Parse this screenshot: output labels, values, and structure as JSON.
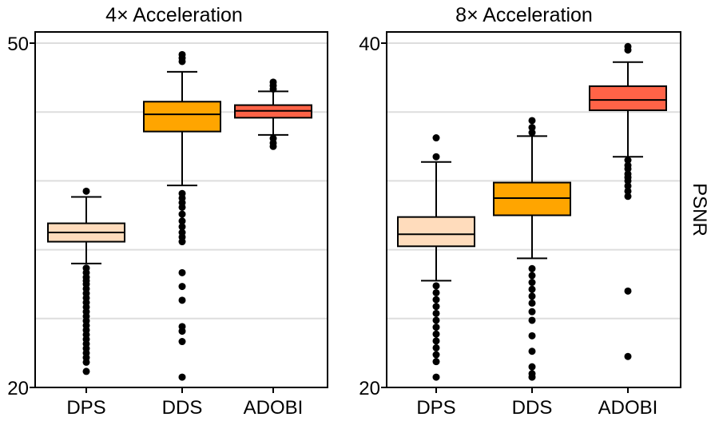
{
  "chart_data": [
    {
      "type": "box",
      "title": "4× Acceleration",
      "ylabel": "",
      "ylim": [
        20,
        50
      ],
      "yticks": [
        20,
        50
      ],
      "grid": true,
      "categories": [
        "DPS",
        "DDS",
        "ADOBI"
      ],
      "colors": [
        "#ffdcbc",
        "#ffa500",
        "#ff6347"
      ],
      "boxes": [
        {
          "label": "DPS",
          "q1": 32.7,
          "median": 33.5,
          "q3": 34.3,
          "whisker_low": 30.8,
          "whisker_high": 36.6,
          "outliers": [
            37.1,
            30.4,
            30.0,
            29.6,
            29.3,
            29.0,
            28.6,
            28.2,
            27.8,
            27.4,
            27.0,
            26.6,
            26.2,
            25.8,
            25.4,
            25.0,
            24.6,
            24.2,
            23.8,
            23.4,
            23.0,
            22.6,
            22.2,
            21.4
          ]
        },
        {
          "label": "DDS",
          "q1": 42.3,
          "median": 43.8,
          "q3": 44.9,
          "whisker_low": 37.6,
          "whisker_high": 47.5,
          "outliers": [
            49.0,
            48.7,
            48.4,
            36.9,
            36.5,
            36.1,
            35.7,
            35.1,
            34.5,
            34.0,
            33.5,
            33.1,
            32.7,
            30.0,
            28.8,
            27.6,
            25.3,
            24.9,
            24.0,
            20.9
          ]
        },
        {
          "label": "ADOBI",
          "q1": 43.5,
          "median": 44.1,
          "q3": 44.6,
          "whisker_low": 42.0,
          "whisker_high": 45.8,
          "outliers": [
            46.6,
            46.3,
            46.0,
            41.7,
            41.3,
            41.0
          ]
        }
      ]
    },
    {
      "type": "box",
      "title": "8× Acceleration",
      "ylabel": "PSNR",
      "ylim": [
        20,
        40
      ],
      "yticks": [
        20,
        40
      ],
      "grid": true,
      "categories": [
        "DPS",
        "DDS",
        "ADOBI"
      ],
      "colors": [
        "#ffdcbc",
        "#ffa500",
        "#ff6347"
      ],
      "boxes": [
        {
          "label": "DPS",
          "q1": 28.2,
          "median": 28.9,
          "q3": 29.9,
          "whisker_low": 26.2,
          "whisker_high": 33.1,
          "outliers": [
            34.5,
            33.4,
            25.9,
            25.5,
            25.1,
            24.7,
            24.3,
            23.9,
            23.5,
            23.1,
            22.7,
            22.3,
            21.9,
            21.5,
            20.6
          ]
        },
        {
          "label": "DDS",
          "q1": 30.0,
          "median": 31.0,
          "q3": 31.9,
          "whisker_low": 27.5,
          "whisker_high": 34.6,
          "outliers": [
            35.5,
            35.1,
            34.8,
            26.9,
            26.5,
            26.1,
            25.7,
            25.3,
            24.9,
            24.4,
            23.9,
            23.0,
            22.1,
            21.2,
            20.8,
            20.6
          ]
        },
        {
          "label": "ADOBI",
          "q1": 36.1,
          "median": 36.7,
          "q3": 37.5,
          "whisker_low": 33.4,
          "whisker_high": 38.9,
          "outliers": [
            39.8,
            39.6,
            33.2,
            32.9,
            32.7,
            32.4,
            32.2,
            32.0,
            31.7,
            31.4,
            31.1,
            25.6,
            21.8
          ]
        }
      ]
    }
  ]
}
